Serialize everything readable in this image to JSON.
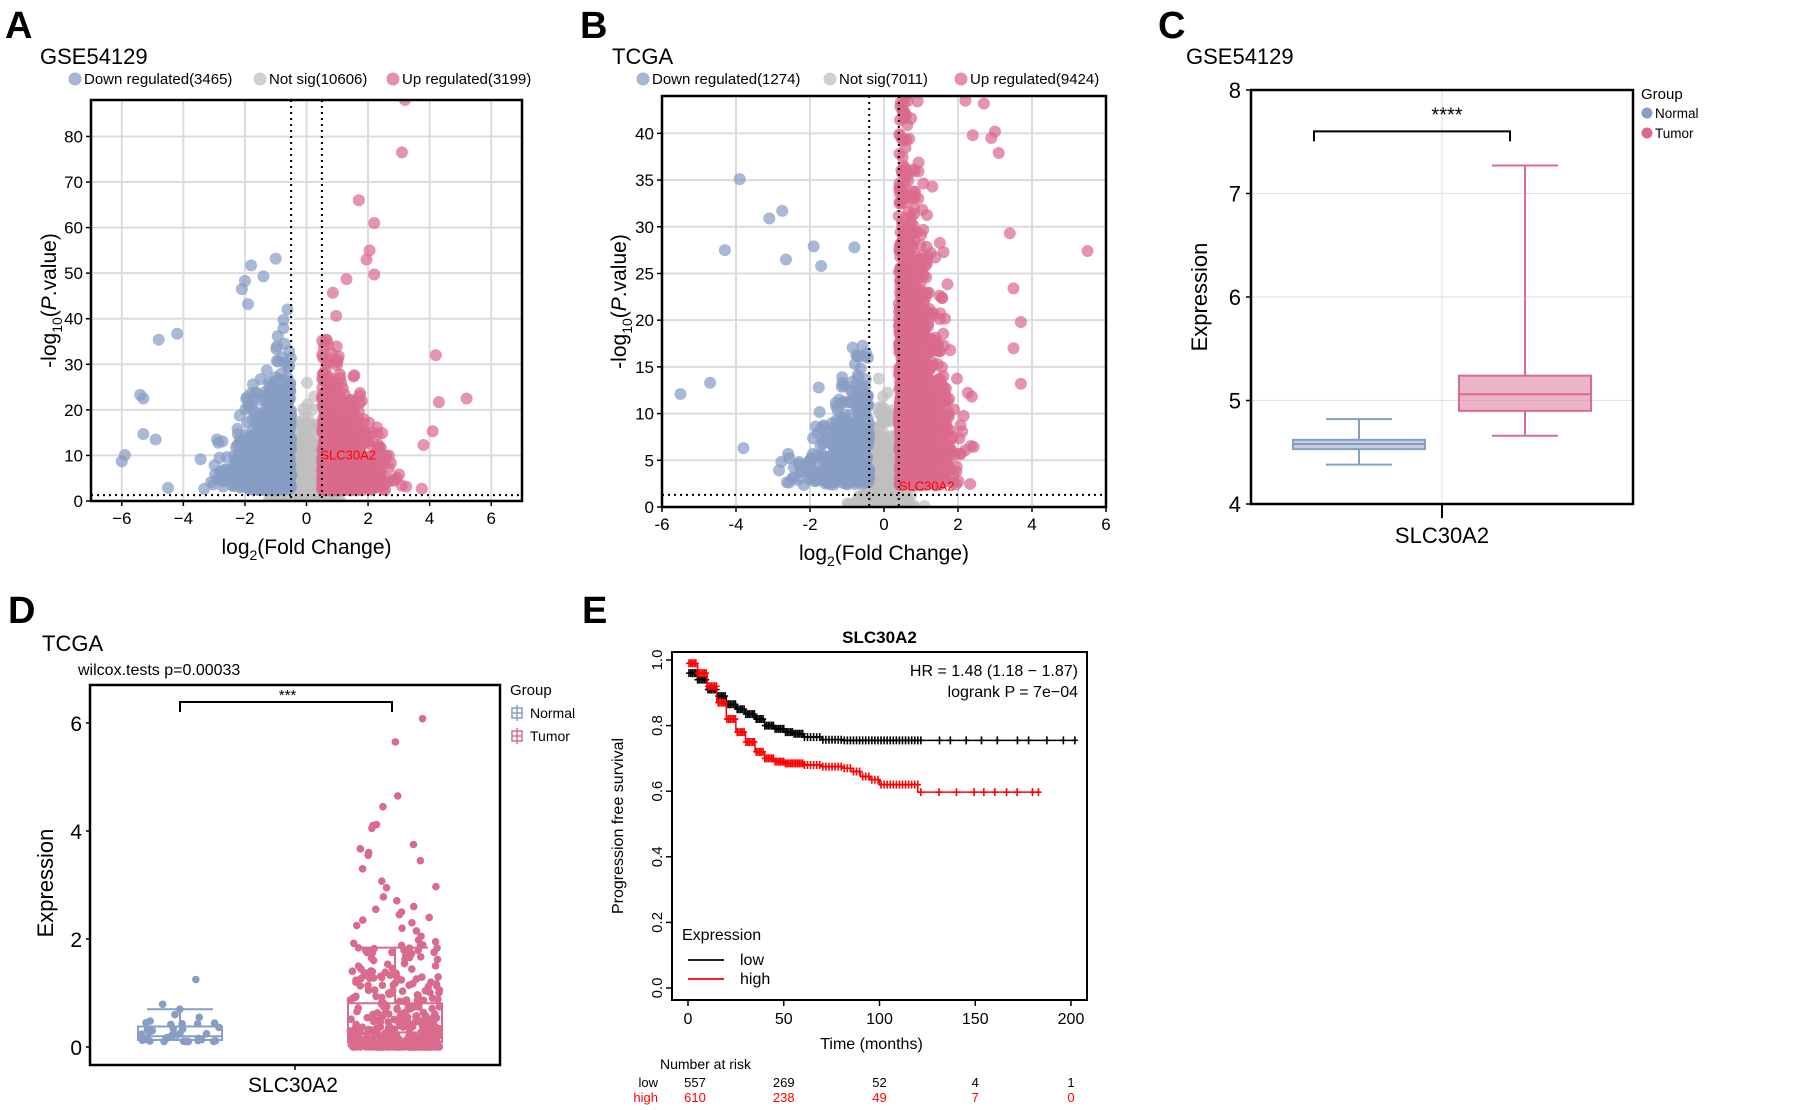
{
  "panels": {
    "A": {
      "letter": "A",
      "title": "GSE54129"
    },
    "B": {
      "letter": "B",
      "title": "TCGA"
    },
    "C": {
      "letter": "C",
      "title": "GSE54129"
    },
    "D": {
      "letter": "D",
      "title": "TCGA",
      "subtitle": "wilcox.tests p=0.00033"
    },
    "E": {
      "letter": "E",
      "title": "SLC30A2"
    }
  },
  "colors": {
    "down": "#889dc4",
    "notsig": "#bfbfbf",
    "up": "#d96b8c",
    "normal": "#889dc4",
    "tumor": "#d96b8c",
    "km_low": "#000000",
    "km_high": "#ff0000",
    "label_red": "#ff0000"
  },
  "chart_data": [
    {
      "id": "A",
      "type": "scatter",
      "title": "GSE54129",
      "xlabel": "log2(Fold Change)",
      "ylabel": "-log10(P.value)",
      "xlim": [
        -7,
        7
      ],
      "ylim": [
        0,
        88
      ],
      "xticks": [
        -6,
        -4,
        -2,
        0,
        2,
        4,
        6
      ],
      "xtick_labels": [
        "−6",
        "−4",
        "−2",
        "0",
        "2",
        "4",
        "6"
      ],
      "yticks": [
        0,
        10,
        20,
        30,
        40,
        50,
        60,
        70,
        80
      ],
      "thresholds": {
        "logfc": [
          -0.5,
          0.5
        ],
        "neglogp": 1.3
      },
      "legend": [
        {
          "key": "down",
          "label": "Down regulated(3465)",
          "count": 3465
        },
        {
          "key": "notsig",
          "label": "Not sig(10606)",
          "count": 10606
        },
        {
          "key": "up",
          "label": "Up regulated(3199)",
          "count": 3199
        }
      ],
      "annotation": {
        "text": "SLC30A2",
        "x": 0.45,
        "y": 10
      },
      "outliers": {
        "up": [
          [
            3.2,
            88
          ],
          [
            3.1,
            76.5
          ],
          [
            1.7,
            66
          ],
          [
            2.2,
            61
          ],
          [
            2.05,
            55
          ],
          [
            1.95,
            53
          ],
          [
            2.2,
            49.7
          ],
          [
            1.3,
            48.7
          ],
          [
            5.2,
            22.5
          ],
          [
            4.2,
            32
          ],
          [
            4.3,
            21.7
          ],
          [
            4.1,
            15.3
          ],
          [
            3.8,
            12.3
          ]
        ],
        "down": [
          [
            -1.0,
            53.2
          ],
          [
            -1.8,
            51.7
          ],
          [
            -2.0,
            48.3
          ],
          [
            -1.4,
            49.3
          ],
          [
            -2.1,
            46.5
          ],
          [
            -1.9,
            43.2
          ],
          [
            -5.4,
            23.3
          ],
          [
            -5.3,
            22.5
          ],
          [
            -6.0,
            8.7
          ],
          [
            -5.9,
            10.1
          ],
          [
            -4.8,
            35.4
          ],
          [
            -4.2,
            36.7
          ],
          [
            -5.3,
            14.7
          ],
          [
            -4.9,
            13.5
          ]
        ]
      }
    },
    {
      "id": "B",
      "type": "scatter",
      "title": "TCGA",
      "xlabel": "log2(Fold Change)",
      "ylabel": "-log10(P.value)",
      "xlim": [
        -6,
        6
      ],
      "ylim": [
        0,
        44
      ],
      "xticks": [
        -6,
        -4,
        -2,
        0,
        2,
        4,
        6
      ],
      "xtick_labels": [
        "-6",
        "-4",
        "-2",
        "0",
        "2",
        "4",
        "6"
      ],
      "yticks": [
        0,
        5,
        10,
        15,
        20,
        25,
        30,
        35,
        40
      ],
      "thresholds": {
        "logfc": [
          -0.4,
          0.4
        ],
        "neglogp": 1.3
      },
      "legend": [
        {
          "key": "down",
          "label": "Down regulated(1274)",
          "count": 1274
        },
        {
          "key": "notsig",
          "label": "Not sig(7011)",
          "count": 7011
        },
        {
          "key": "up",
          "label": "Up regulated(9424)",
          "count": 9424
        }
      ],
      "annotation": {
        "text": "SLC30A2",
        "x": 0.4,
        "y": 2.2
      },
      "outliers": {
        "up": [
          [
            2.2,
            43.5
          ],
          [
            2.7,
            43.2
          ],
          [
            2.4,
            39.8
          ],
          [
            3.0,
            40.2
          ],
          [
            2.9,
            39.5
          ],
          [
            3.1,
            37.9
          ],
          [
            5.5,
            27.4
          ],
          [
            3.7,
            19.8
          ],
          [
            3.7,
            13.2
          ],
          [
            3.5,
            23.4
          ],
          [
            3.5,
            17.0
          ],
          [
            3.4,
            29.3
          ]
        ],
        "down": [
          [
            -3.9,
            35.1
          ],
          [
            -2.75,
            31.7
          ],
          [
            -3.1,
            30.9
          ],
          [
            -4.3,
            27.5
          ],
          [
            -5.5,
            12.1
          ],
          [
            -4.7,
            13.3
          ],
          [
            -3.8,
            6.3
          ],
          [
            -1.9,
            27.9
          ],
          [
            -0.8,
            27.8
          ],
          [
            -2.65,
            26.5
          ],
          [
            -1.7,
            25.8
          ]
        ]
      }
    },
    {
      "id": "C",
      "type": "box",
      "title": "GSE54129",
      "xlabel": "SLC30A2",
      "ylabel": "Expression",
      "ylim": [
        4,
        8
      ],
      "yticks": [
        4,
        5,
        6,
        7,
        8
      ],
      "legend_title": "Group",
      "significance": "****",
      "groups": [
        {
          "name": "Normal",
          "whisker_low": 4.38,
          "q1": 4.53,
          "median": 4.58,
          "q3": 4.62,
          "whisker_high": 4.82
        },
        {
          "name": "Tumor",
          "whisker_low": 4.66,
          "q1": 4.9,
          "median": 5.06,
          "q3": 5.24,
          "whisker_high": 7.27
        }
      ]
    },
    {
      "id": "D",
      "type": "box",
      "title": "TCGA",
      "subtitle": "wilcox.tests p=0.00033",
      "xlabel": "SLC30A2",
      "ylabel": "Expression",
      "ylim": [
        -0.3,
        6.7
      ],
      "yticks": [
        0,
        2,
        4,
        6
      ],
      "legend_title": "Group",
      "significance": "***",
      "groups": [
        {
          "name": "Normal",
          "whisker_low": 0.11,
          "q1": 0.13,
          "median": 0.2,
          "q3": 0.38,
          "whisker_high": 0.7,
          "n_points": 32,
          "outliers": [
            1.25,
            0.79,
            0.7,
            0.6,
            0.55,
            0.48,
            0.45
          ]
        },
        {
          "name": "Tumor",
          "whisker_low": 0.07,
          "q1": 0.09,
          "median": 0.27,
          "q3": 0.81,
          "whisker_high": 1.84,
          "n_points": 380,
          "outliers": [
            6.08,
            5.65,
            4.65,
            4.45,
            4.12,
            4.05,
            4.1,
            3.75,
            3.67,
            3.6,
            3.55,
            3.45,
            3.3,
            3.07,
            2.97,
            2.95,
            2.78,
            2.71,
            2.6,
            2.55,
            2.5,
            2.45,
            2.4,
            2.35,
            2.3,
            2.25,
            2.2,
            2.15,
            2.05,
            1.98,
            1.95
          ]
        }
      ]
    },
    {
      "id": "E",
      "type": "line",
      "title": "SLC30A2",
      "xlabel": "Time (months)",
      "ylabel": "Progression free survival",
      "xlim": [
        -12,
        210
      ],
      "ylim": [
        -0.02,
        1.02
      ],
      "xticks": [
        0,
        50,
        100,
        150,
        200
      ],
      "yticks": [
        0.0,
        0.2,
        0.4,
        0.6,
        0.8,
        1.0
      ],
      "ytick_labels": [
        "0.0",
        "0.2",
        "0.4",
        "0.6",
        "0.8",
        "1.0"
      ],
      "annotations": [
        "HR = 1.48 (1.18 − 1.87)",
        "logrank P = 7e−04"
      ],
      "legend_title": "Expression",
      "series": [
        {
          "name": "low",
          "color_key": "km_low",
          "points": [
            [
              0,
              0.96
            ],
            [
              5,
              0.94
            ],
            [
              10,
              0.91
            ],
            [
              15,
              0.89
            ],
            [
              20,
              0.865
            ],
            [
              25,
              0.85
            ],
            [
              30,
              0.835
            ],
            [
              35,
              0.82
            ],
            [
              40,
              0.8
            ],
            [
              45,
              0.79
            ],
            [
              50,
              0.78
            ],
            [
              55,
              0.775
            ],
            [
              60,
              0.765
            ],
            [
              70,
              0.757
            ],
            [
              80,
              0.755
            ],
            [
              100,
              0.755
            ],
            [
              150,
              0.755
            ],
            [
              202,
              0.755
            ]
          ],
          "censor_max": 202
        },
        {
          "name": "high",
          "color_key": "km_high",
          "points": [
            [
              0,
              0.99
            ],
            [
              5,
              0.96
            ],
            [
              10,
              0.92
            ],
            [
              15,
              0.87
            ],
            [
              20,
              0.82
            ],
            [
              25,
              0.78
            ],
            [
              30,
              0.75
            ],
            [
              35,
              0.72
            ],
            [
              40,
              0.7
            ],
            [
              45,
              0.69
            ],
            [
              50,
              0.685
            ],
            [
              60,
              0.68
            ],
            [
              70,
              0.675
            ],
            [
              80,
              0.67
            ],
            [
              85,
              0.66
            ],
            [
              90,
              0.645
            ],
            [
              95,
              0.635
            ],
            [
              100,
              0.62
            ],
            [
              115,
              0.62
            ],
            [
              120,
              0.597
            ],
            [
              183,
              0.597
            ]
          ],
          "censor_max": 183
        }
      ],
      "risk_table": {
        "title": "Number at risk",
        "times": [
          0,
          50,
          100,
          150,
          200
        ],
        "rows": [
          {
            "label": "low",
            "color_key": "km_low",
            "values": [
              "557",
              "269",
              "52",
              "4",
              "1"
            ]
          },
          {
            "label": "high",
            "color_key": "km_high",
            "values": [
              "610",
              "238",
              "49",
              "7",
              "0"
            ]
          }
        ]
      }
    }
  ]
}
